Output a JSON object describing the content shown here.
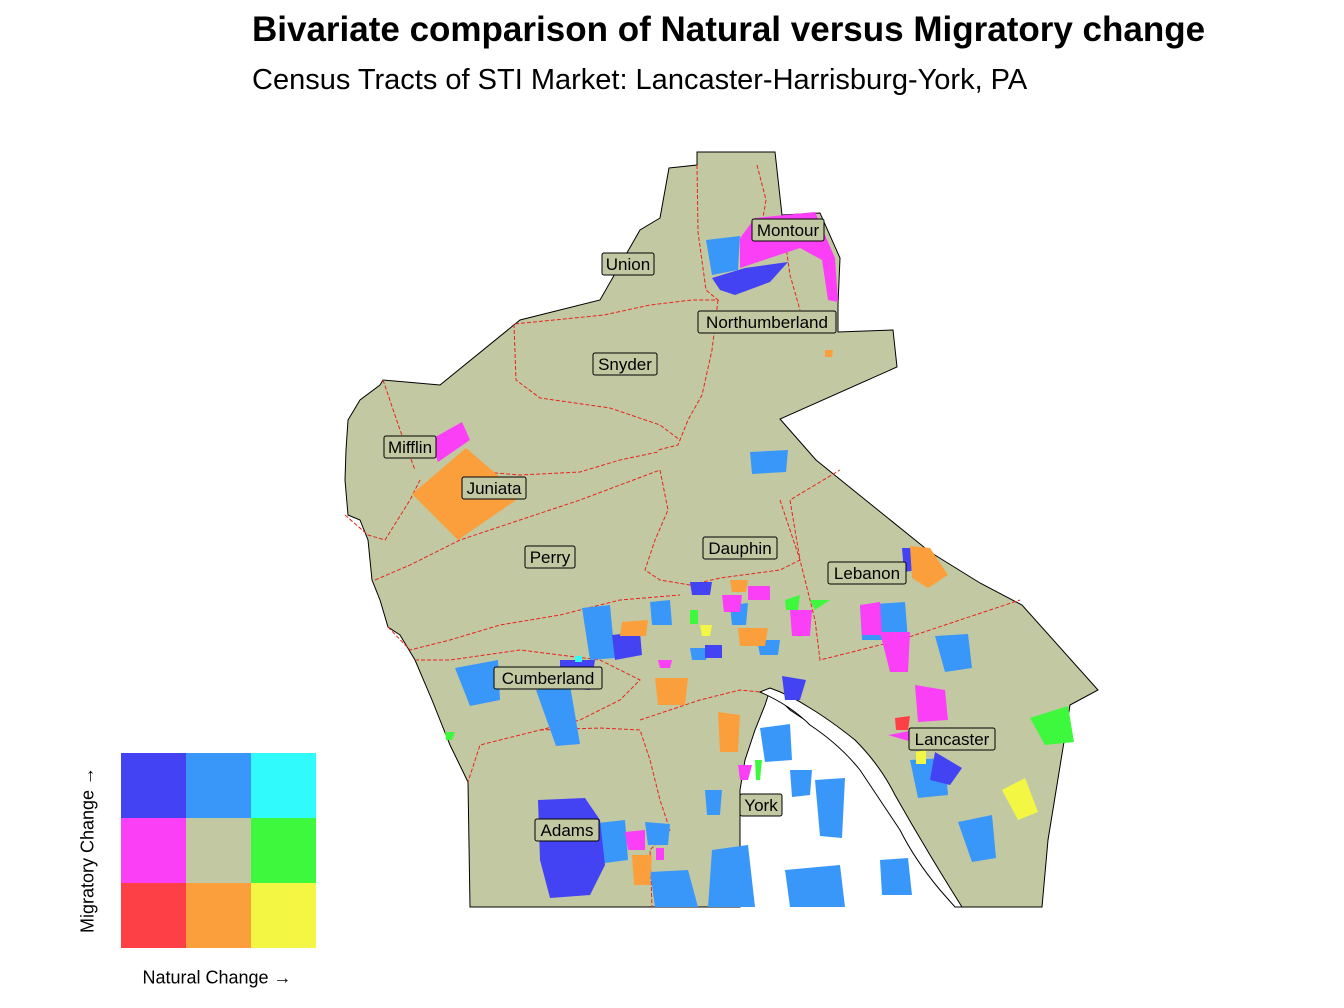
{
  "title": "Bivariate comparison of Natural versus Migratory change",
  "subtitle": "Census Tracts of STI Market: Lancaster-Harrisburg-York, PA",
  "counties": [
    "Montour",
    "Union",
    "Northumberland",
    "Snyder",
    "Mifflin",
    "Juniata",
    "Perry",
    "Dauphin",
    "Lebanon",
    "Cumberland",
    "Lancaster",
    "York",
    "Adams"
  ],
  "colors": {
    "base": "#c2c9a2",
    "boundary": "#e8231e",
    "outline": "#000000"
  },
  "legend": {
    "x_label": "Natural Change →",
    "y_label": "Migratory Change →",
    "grid": [
      [
        "#4343f4",
        "#3a97fa",
        "#30fafc"
      ],
      [
        "#fb3ff7",
        "#c2c9a2",
        "#3ef83e"
      ],
      [
        "#fc4045",
        "#fb9f3d",
        "#f3f743"
      ]
    ]
  }
}
